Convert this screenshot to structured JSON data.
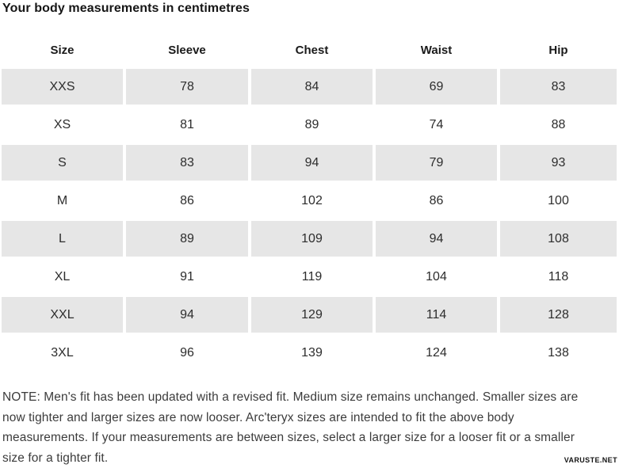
{
  "title": "Your body measurements in centimetres",
  "table": {
    "headers": [
      "Size",
      "Sleeve",
      "Chest",
      "Waist",
      "Hip"
    ],
    "rows": [
      {
        "size": "XXS",
        "sleeve": "78",
        "chest": "84",
        "waist": "69",
        "hip": "83"
      },
      {
        "size": "XS",
        "sleeve": "81",
        "chest": "89",
        "waist": "74",
        "hip": "88"
      },
      {
        "size": "S",
        "sleeve": "83",
        "chest": "94",
        "waist": "79",
        "hip": "93"
      },
      {
        "size": "M",
        "sleeve": "86",
        "chest": "102",
        "waist": "86",
        "hip": "100"
      },
      {
        "size": "L",
        "sleeve": "89",
        "chest": "109",
        "waist": "94",
        "hip": "108"
      },
      {
        "size": "XL",
        "sleeve": "91",
        "chest": "119",
        "waist": "104",
        "hip": "118"
      },
      {
        "size": "XXL",
        "sleeve": "94",
        "chest": "129",
        "waist": "114",
        "hip": "128"
      },
      {
        "size": "3XL",
        "sleeve": "96",
        "chest": "139",
        "waist": "124",
        "hip": "138"
      }
    ]
  },
  "note": {
    "lines": [
      "NOTE: Men's fit has been updated with a revised fit. Medium size remains unchanged. Smaller sizes are",
      "now tighter and larger sizes are now looser. Arc'teryx sizes are intended to fit the above body",
      "measurements. If your measurements are between sizes, select a larger size for a looser fit or a smaller",
      "size for a tighter fit."
    ]
  },
  "watermark": "VARUSTE.NET",
  "colors": {
    "row_stripe": "#e6e6e6",
    "title_text": "#161616",
    "cell_text": "#2d2d2d",
    "note_text": "#3c3c3c"
  }
}
